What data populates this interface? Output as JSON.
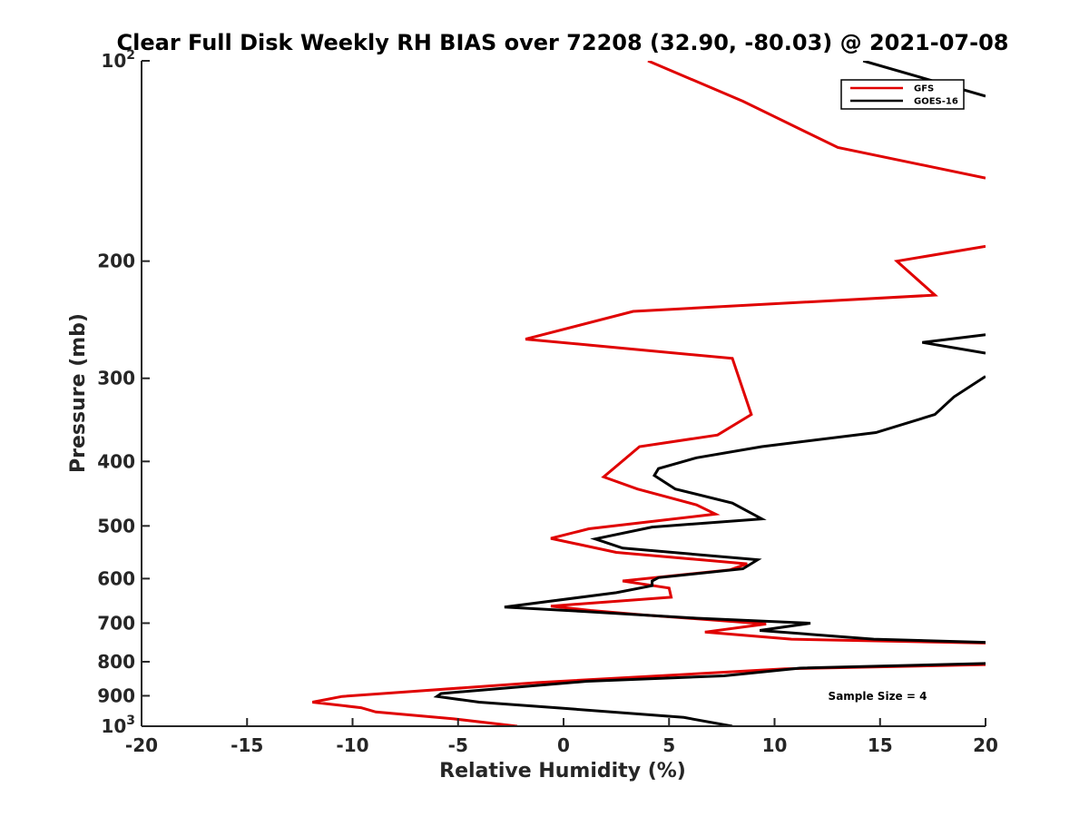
{
  "chart_data": {
    "type": "line",
    "title": "Clear Full Disk Weekly RH BIAS over 72208 (32.90, -80.03) @ 2021-07-08",
    "xlabel": "Relative Humidity (%)",
    "ylabel": "Pressure (mb)",
    "xlim": [
      -20,
      20
    ],
    "ylim": [
      100,
      1000
    ],
    "y_scale": "log",
    "y_reversed": true,
    "x_ticks": [
      -20,
      -15,
      -10,
      -5,
      0,
      5,
      10,
      15,
      20
    ],
    "x_tick_labels": [
      "-20",
      "-15",
      "-10",
      "-5",
      "0",
      "5",
      "10",
      "15",
      "20"
    ],
    "y_ticks": [
      100,
      200,
      300,
      400,
      500,
      600,
      700,
      800,
      900,
      1000
    ],
    "y_tick_labels": [
      {
        "base": "10",
        "sup": "2"
      },
      {
        "base": "200",
        "sup": ""
      },
      {
        "base": "300",
        "sup": ""
      },
      {
        "base": "400",
        "sup": ""
      },
      {
        "base": "500",
        "sup": ""
      },
      {
        "base": "600",
        "sup": ""
      },
      {
        "base": "700",
        "sup": ""
      },
      {
        "base": "800",
        "sup": ""
      },
      {
        "base": "900",
        "sup": ""
      },
      {
        "base": "10",
        "sup": "3"
      }
    ],
    "grid": false,
    "legend_position": "top-right",
    "series": [
      {
        "name": "GFS",
        "color": "#e00000",
        "points": [
          [
            4.0,
            100
          ],
          [
            8.5,
            115
          ],
          [
            13.0,
            135
          ],
          [
            20.0,
            150
          ],
          null,
          [
            20.0,
            190
          ],
          [
            15.8,
            200
          ],
          [
            17.6,
            225
          ],
          [
            3.3,
            238
          ],
          [
            -1.8,
            262
          ],
          [
            8.0,
            280
          ],
          [
            8.9,
            340
          ],
          [
            7.3,
            365
          ],
          [
            3.6,
            380
          ],
          [
            1.9,
            422
          ],
          [
            3.5,
            440
          ],
          [
            6.3,
            465
          ],
          [
            7.2,
            480
          ],
          [
            1.2,
            505
          ],
          [
            -0.6,
            522
          ],
          [
            2.5,
            548
          ],
          [
            8.7,
            570
          ],
          [
            7.9,
            582
          ],
          [
            2.8,
            605
          ],
          [
            5.0,
            620
          ],
          [
            5.1,
            640
          ],
          [
            -0.6,
            660
          ],
          [
            1.3,
            670
          ],
          [
            3.7,
            680
          ],
          [
            9.6,
            702
          ],
          [
            6.7,
            722
          ],
          [
            10.8,
            740
          ],
          [
            20.0,
            750
          ],
          null,
          [
            20.0,
            808
          ],
          [
            10.5,
            820
          ],
          [
            -1.3,
            860
          ],
          [
            -10.5,
            902
          ],
          [
            -11.9,
            920
          ],
          [
            -9.6,
            938
          ],
          [
            -8.9,
            952
          ],
          [
            -5.2,
            975
          ],
          [
            -2.2,
            1000
          ]
        ]
      },
      {
        "name": "GOES-16",
        "color": "#000000",
        "points": [
          [
            14.2,
            100
          ],
          [
            20.0,
            113
          ],
          null,
          [
            20.0,
            258
          ],
          [
            17.0,
            265
          ],
          [
            20.0,
            275
          ],
          null,
          [
            20.0,
            298
          ],
          [
            18.5,
            320
          ],
          [
            17.6,
            340
          ],
          [
            14.8,
            362
          ],
          [
            9.4,
            380
          ],
          [
            6.3,
            395
          ],
          [
            4.5,
            410
          ],
          [
            4.3,
            420
          ],
          [
            5.3,
            440
          ],
          [
            8.0,
            462
          ],
          [
            9.4,
            488
          ],
          [
            4.2,
            502
          ],
          [
            1.5,
            523
          ],
          [
            2.8,
            540
          ],
          [
            9.2,
            562
          ],
          [
            8.5,
            580
          ],
          [
            4.5,
            598
          ],
          [
            4.2,
            605
          ],
          [
            4.2,
            615
          ],
          [
            2.5,
            630
          ],
          [
            -2.8,
            662
          ],
          [
            0.9,
            672
          ],
          [
            6.3,
            688
          ],
          [
            11.7,
            700
          ],
          [
            9.3,
            718
          ],
          [
            14.7,
            740
          ],
          [
            20.0,
            748
          ],
          null,
          [
            20.0,
            805
          ],
          [
            11.2,
            818
          ],
          [
            7.6,
            840
          ],
          [
            1.1,
            856
          ],
          [
            -1.6,
            870
          ],
          [
            -5.8,
            893
          ],
          [
            -6.0,
            902
          ],
          [
            -4.0,
            920
          ],
          [
            0.0,
            940
          ],
          [
            5.7,
            970
          ],
          [
            8.0,
            1000
          ]
        ]
      }
    ],
    "annotations": [
      "Sample Size = 4"
    ]
  }
}
